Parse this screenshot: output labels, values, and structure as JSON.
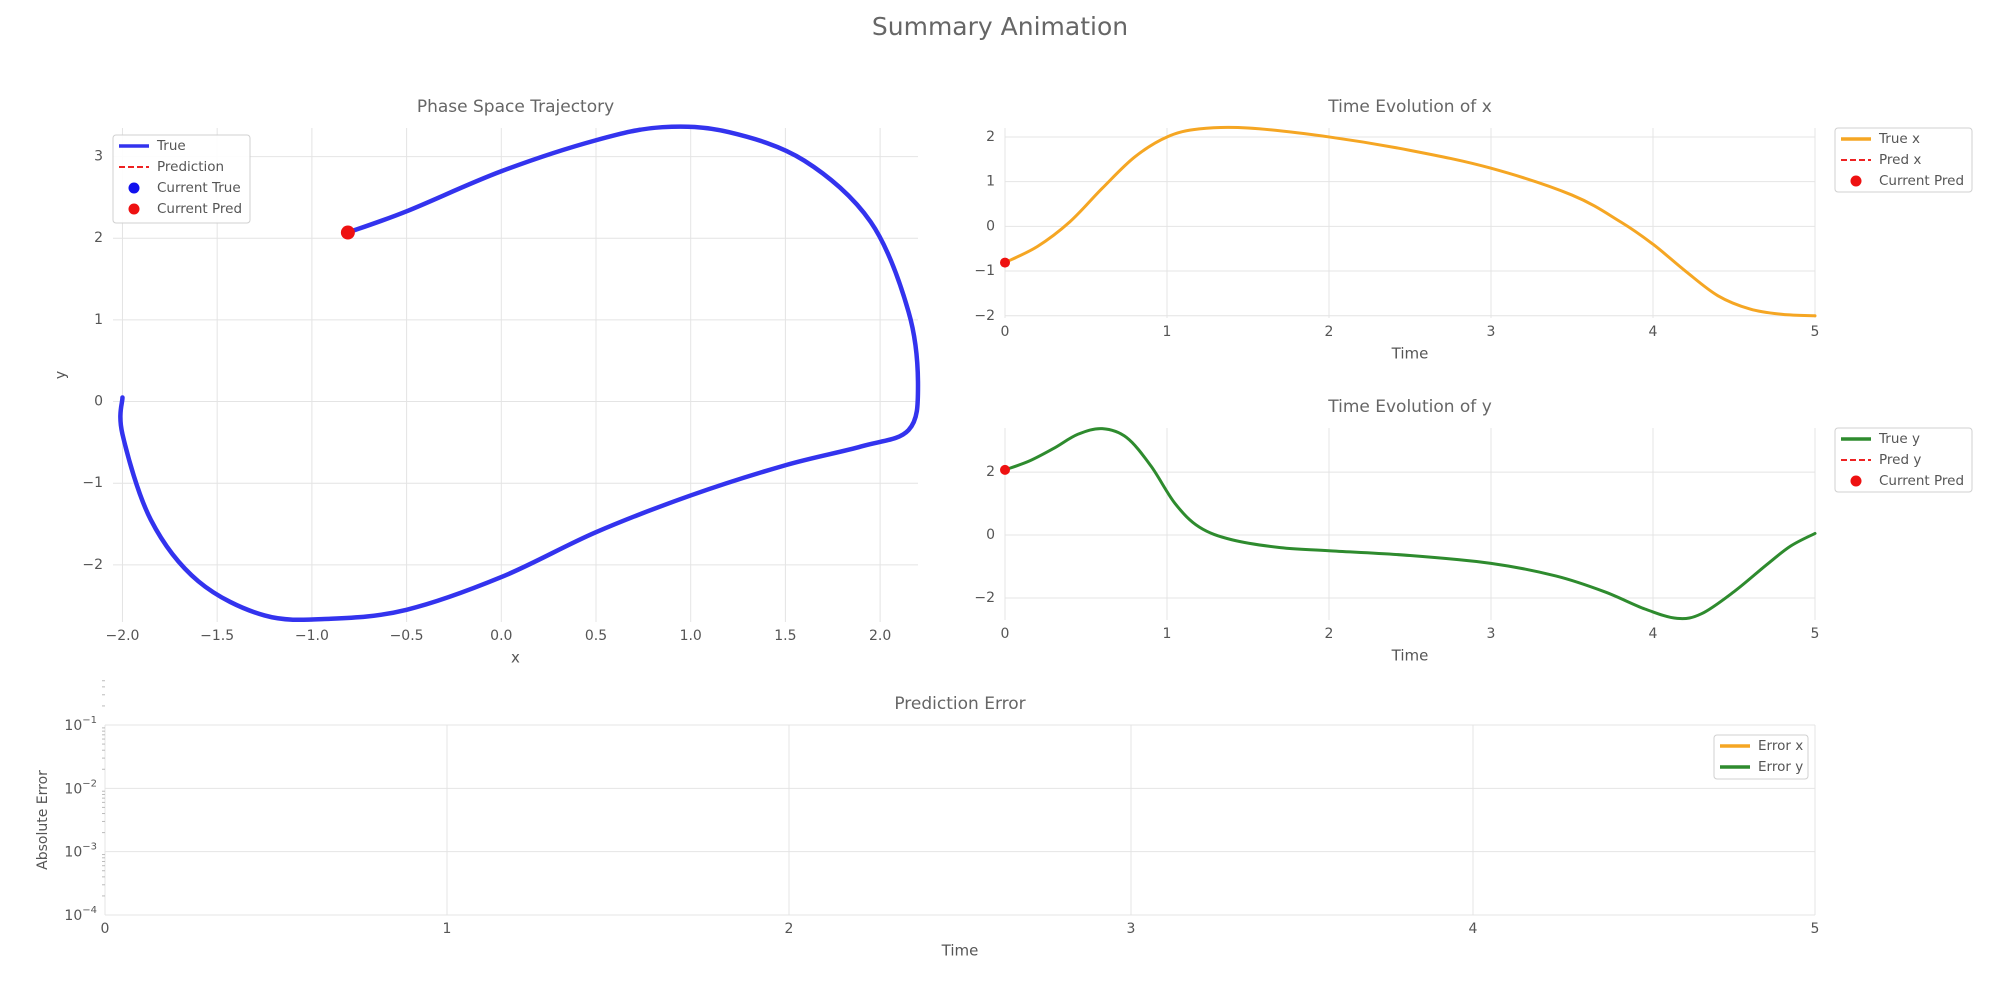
{
  "title": "Summary Animation",
  "chart_data": [
    {
      "id": "phase",
      "type": "line",
      "title": "Phase Space Trajectory",
      "xlabel": "x",
      "ylabel": "y",
      "xlim": [
        -2.05,
        2.2
      ],
      "ylim": [
        -2.7,
        3.35
      ],
      "xticks": [
        -2.0,
        -1.5,
        -1.0,
        -0.5,
        0.0,
        0.5,
        1.0,
        1.5,
        2.0
      ],
      "xtick_labels": [
        "−2.0",
        "−1.5",
        "−1.0",
        "−0.5",
        "0.0",
        "0.5",
        "1.0",
        "1.5",
        "2.0"
      ],
      "yticks": [
        -2,
        -1,
        0,
        1,
        2,
        3
      ],
      "ytick_labels": [
        "−2",
        "−1",
        "0",
        "1",
        "2",
        "3"
      ],
      "grid": true,
      "legend": {
        "position": "top-left",
        "entries": [
          {
            "label": "True",
            "style": "line",
            "color": "#3333ee"
          },
          {
            "label": "Prediction",
            "style": "dashed",
            "color": "#ee2222"
          },
          {
            "label": "Current True",
            "style": "marker",
            "color": "#1111ee"
          },
          {
            "label": "Current Pred",
            "style": "marker",
            "color": "#ee1111"
          }
        ]
      },
      "series": [
        {
          "name": "True",
          "color": "#3333ee",
          "points": [
            [
              -0.81,
              2.07
            ],
            [
              -0.5,
              2.33
            ],
            [
              0.0,
              2.82
            ],
            [
              0.5,
              3.2
            ],
            [
              0.85,
              3.36
            ],
            [
              1.2,
              3.3
            ],
            [
              1.6,
              2.95
            ],
            [
              1.95,
              2.2
            ],
            [
              2.15,
              1.1
            ],
            [
              2.2,
              0.2
            ],
            [
              2.15,
              -0.35
            ],
            [
              1.9,
              -0.55
            ],
            [
              1.5,
              -0.78
            ],
            [
              1.0,
              -1.15
            ],
            [
              0.5,
              -1.6
            ],
            [
              0.0,
              -2.15
            ],
            [
              -0.5,
              -2.55
            ],
            [
              -0.9,
              -2.66
            ],
            [
              -1.25,
              -2.62
            ],
            [
              -1.6,
              -2.2
            ],
            [
              -1.85,
              -1.45
            ],
            [
              -2.0,
              -0.4
            ],
            [
              -2.0,
              0.05
            ]
          ]
        }
      ],
      "markers": [
        {
          "name": "Current Pred",
          "color": "#ee1111",
          "x": -0.81,
          "y": 2.07
        }
      ]
    },
    {
      "id": "xt",
      "type": "line",
      "title": "Time Evolution of x",
      "xlabel": "Time",
      "xlim": [
        0,
        5
      ],
      "ylim": [
        -2.05,
        2.2
      ],
      "xticks": [
        0,
        1,
        2,
        3,
        4,
        5
      ],
      "xtick_labels": [
        "0",
        "1",
        "2",
        "3",
        "4",
        "5"
      ],
      "yticks": [
        -2,
        -1,
        0,
        1,
        2
      ],
      "ytick_labels": [
        "−2",
        "−1",
        "0",
        "1",
        "2"
      ],
      "grid": true,
      "legend": {
        "position": "outside-right",
        "entries": [
          {
            "label": "True x",
            "style": "line",
            "color": "#f5a623"
          },
          {
            "label": "Pred x",
            "style": "dashed",
            "color": "#ee2222"
          },
          {
            "label": "Current Pred",
            "style": "marker",
            "color": "#ee1111"
          }
        ]
      },
      "series": [
        {
          "name": "True x",
          "color": "#f5a623",
          "points": [
            [
              0,
              -0.81
            ],
            [
              0.2,
              -0.45
            ],
            [
              0.4,
              0.1
            ],
            [
              0.6,
              0.85
            ],
            [
              0.8,
              1.55
            ],
            [
              1.0,
              2.0
            ],
            [
              1.2,
              2.18
            ],
            [
              1.5,
              2.2
            ],
            [
              2.0,
              2.0
            ],
            [
              2.5,
              1.7
            ],
            [
              3.0,
              1.3
            ],
            [
              3.5,
              0.7
            ],
            [
              3.8,
              0.1
            ],
            [
              4.0,
              -0.4
            ],
            [
              4.2,
              -1.0
            ],
            [
              4.4,
              -1.55
            ],
            [
              4.6,
              -1.85
            ],
            [
              4.8,
              -1.97
            ],
            [
              5.0,
              -2.0
            ]
          ]
        }
      ],
      "markers": [
        {
          "name": "Current Pred",
          "color": "#ee1111",
          "x": 0,
          "y": -0.81
        }
      ]
    },
    {
      "id": "yt",
      "type": "line",
      "title": "Time Evolution of y",
      "xlabel": "Time",
      "xlim": [
        0,
        5
      ],
      "ylim": [
        -2.7,
        3.4
      ],
      "xticks": [
        0,
        1,
        2,
        3,
        4,
        5
      ],
      "xtick_labels": [
        "0",
        "1",
        "2",
        "3",
        "4",
        "5"
      ],
      "yticks": [
        -2,
        0,
        2
      ],
      "ytick_labels": [
        "−2",
        "0",
        "2"
      ],
      "grid": true,
      "legend": {
        "position": "outside-right",
        "entries": [
          {
            "label": "True y",
            "style": "line",
            "color": "#2e8b2e"
          },
          {
            "label": "Pred y",
            "style": "dashed",
            "color": "#ee2222"
          },
          {
            "label": "Current Pred",
            "style": "marker",
            "color": "#ee1111"
          }
        ]
      },
      "series": [
        {
          "name": "True y",
          "color": "#2e8b2e",
          "points": [
            [
              0,
              2.07
            ],
            [
              0.15,
              2.35
            ],
            [
              0.3,
              2.75
            ],
            [
              0.45,
              3.2
            ],
            [
              0.6,
              3.38
            ],
            [
              0.75,
              3.1
            ],
            [
              0.9,
              2.2
            ],
            [
              1.05,
              1.0
            ],
            [
              1.2,
              0.25
            ],
            [
              1.4,
              -0.15
            ],
            [
              1.7,
              -0.4
            ],
            [
              2.0,
              -0.5
            ],
            [
              2.5,
              -0.65
            ],
            [
              3.0,
              -0.9
            ],
            [
              3.4,
              -1.3
            ],
            [
              3.7,
              -1.8
            ],
            [
              3.95,
              -2.35
            ],
            [
              4.15,
              -2.65
            ],
            [
              4.3,
              -2.5
            ],
            [
              4.5,
              -1.8
            ],
            [
              4.7,
              -0.95
            ],
            [
              4.85,
              -0.35
            ],
            [
              5.0,
              0.05
            ]
          ]
        }
      ],
      "markers": [
        {
          "name": "Current Pred",
          "color": "#ee1111",
          "x": 0,
          "y": 2.07
        }
      ]
    },
    {
      "id": "err",
      "type": "line",
      "title": "Prediction Error",
      "xlabel": "Time",
      "ylabel": "Absolute Error",
      "yscale": "log",
      "xlim": [
        0,
        5
      ],
      "ylim": [
        0.0001,
        0.1
      ],
      "xticks": [
        0,
        1,
        2,
        3,
        4,
        5
      ],
      "xtick_labels": [
        "0",
        "1",
        "2",
        "3",
        "4",
        "5"
      ],
      "yticks": [
        0.1,
        0.01,
        0.001,
        0.0001
      ],
      "ytick_labels": [
        [
          "10",
          "−1"
        ],
        [
          "10",
          "−2"
        ],
        [
          "10",
          "−3"
        ],
        [
          "10",
          "−4"
        ]
      ],
      "grid": true,
      "legend": {
        "position": "top-right",
        "entries": [
          {
            "label": "Error x",
            "style": "line",
            "color": "#f5a623"
          },
          {
            "label": "Error y",
            "style": "line",
            "color": "#2e8b2e"
          }
        ]
      },
      "series": []
    }
  ]
}
